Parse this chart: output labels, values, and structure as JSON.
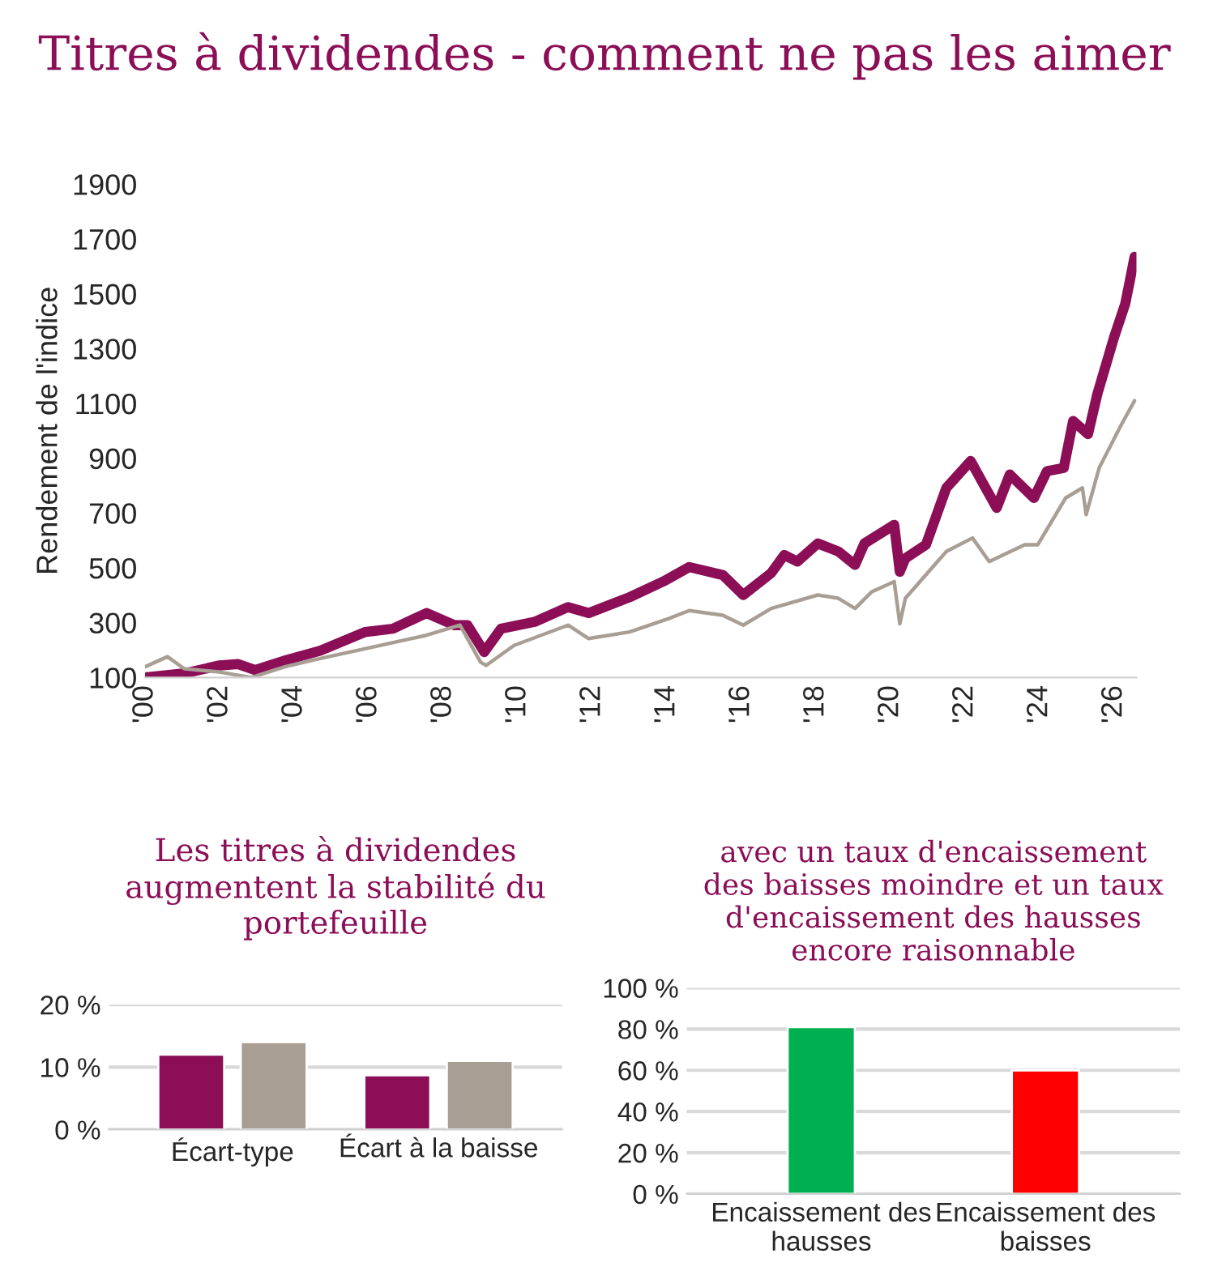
{
  "chart_data": [
    {
      "type": "line",
      "title": "Titres à dividendes - comment ne pas les aimer",
      "ylabel": "Rendement de l'indice",
      "xlim": [
        2000,
        2026.6
      ],
      "ylim": [
        100,
        1900
      ],
      "xticks": [
        {
          "value": 2000,
          "label": "'00"
        },
        {
          "value": 2002,
          "label": "'02"
        },
        {
          "value": 2004,
          "label": "'04"
        },
        {
          "value": 2006,
          "label": "'06"
        },
        {
          "value": 2008,
          "label": "'08"
        },
        {
          "value": 2010,
          "label": "'10"
        },
        {
          "value": 2012,
          "label": "'12"
        },
        {
          "value": 2014,
          "label": "'14"
        },
        {
          "value": 2016,
          "label": "'16"
        },
        {
          "value": 2018,
          "label": "'18"
        },
        {
          "value": 2020,
          "label": "'20"
        },
        {
          "value": 2022,
          "label": "'22"
        },
        {
          "value": 2024,
          "label": "'24"
        },
        {
          "value": 2026,
          "label": "'26"
        }
      ],
      "yticks": [
        100,
        300,
        500,
        700,
        900,
        1100,
        1300,
        1500,
        1700,
        1900
      ],
      "grid": false,
      "legend": false,
      "series": [
        {
          "color": "#8b0e57",
          "x": [
            2000.0,
            2001.05,
            2002.0,
            2002.5,
            2002.95,
            2003.8,
            2004.7,
            2005.9,
            2006.65,
            2007.55,
            2008.3,
            2008.65,
            2009.1,
            2009.55,
            2010.45,
            2011.35,
            2011.9,
            2013.0,
            2013.9,
            2014.6,
            2015.5,
            2016.05,
            2016.8,
            2017.15,
            2017.5,
            2018.05,
            2018.6,
            2019.05,
            2019.3,
            2020.1,
            2020.25,
            2020.4,
            2020.95,
            2021.5,
            2022.15,
            2022.55,
            2022.85,
            2023.2,
            2023.85,
            2024.2,
            2024.65,
            2024.9,
            2025.3,
            2025.55,
            2026.0,
            2026.3,
            2026.55
          ],
          "values": [
            100,
            115,
            144,
            149,
            127,
            164,
            198,
            266,
            278,
            335,
            291,
            291,
            193,
            278,
            303,
            357,
            335,
            393,
            450,
            503,
            474,
            401,
            481,
            547,
            523,
            589,
            560,
            511,
            589,
            657,
            486,
            535,
            584,
            792,
            890,
            792,
            719,
            841,
            755,
            853,
            865,
            1036,
            988,
            1134,
            1342,
            1464,
            1635
          ]
        },
        {
          "color": "#a89e94",
          "x": [
            2000.0,
            2000.6,
            2001.05,
            2002.0,
            2002.85,
            2003.75,
            2004.65,
            2005.9,
            2007.55,
            2008.45,
            2009.0,
            2009.15,
            2009.9,
            2011.35,
            2011.9,
            2013.0,
            2014.05,
            2014.6,
            2015.5,
            2016.05,
            2016.8,
            2018.05,
            2018.6,
            2019.05,
            2019.5,
            2020.1,
            2020.25,
            2020.4,
            2021.5,
            2022.2,
            2022.65,
            2023.6,
            2023.95,
            2024.7,
            2025.15,
            2025.25,
            2025.6,
            2026.2,
            2026.55
          ],
          "values": [
            139,
            176,
            132,
            120,
            100,
            139,
            168,
            205,
            254,
            291,
            156,
            144,
            217,
            291,
            242,
            266,
            315,
            344,
            327,
            291,
            352,
            401,
            389,
            352,
            413,
            450,
            296,
            389,
            560,
            609,
            523,
            584,
            584,
            755,
            792,
            694,
            865,
            1024,
            1110
          ]
        }
      ]
    },
    {
      "type": "bar",
      "title": "Les titres à dividendes augmentent la stabilité du portefeuille",
      "categories": [
        "Écart-type",
        "Écart à la baisse"
      ],
      "ylim": [
        0,
        20
      ],
      "yticks": [
        {
          "value": 0,
          "label": "0 %"
        },
        {
          "value": 10,
          "label": "10 %"
        },
        {
          "value": 20,
          "label": "20 %"
        }
      ],
      "grid": "y",
      "legend": false,
      "series": [
        {
          "color": "#8b0e57",
          "values": [
            12,
            8.7
          ]
        },
        {
          "color": "#a89e94",
          "values": [
            14,
            11
          ]
        }
      ]
    },
    {
      "type": "bar",
      "title": "avec un taux d'encaissement des baisses moindre et un taux d'encaissement des hausses encore raisonnable",
      "categories": [
        "Encaissement des\nhausses",
        "Encaissement des\nbaisses"
      ],
      "ylim": [
        0,
        100
      ],
      "yticks": [
        {
          "value": 0,
          "label": "0 %"
        },
        {
          "value": 20,
          "label": "20 %"
        },
        {
          "value": 40,
          "label": "40 %"
        },
        {
          "value": 60,
          "label": "60 %"
        },
        {
          "value": 80,
          "label": "80 %"
        },
        {
          "value": 100,
          "label": "100 %"
        }
      ],
      "grid": "y",
      "legend": false,
      "values": [
        81,
        60
      ],
      "colors": [
        "#00b050",
        "#ff0000"
      ]
    }
  ]
}
